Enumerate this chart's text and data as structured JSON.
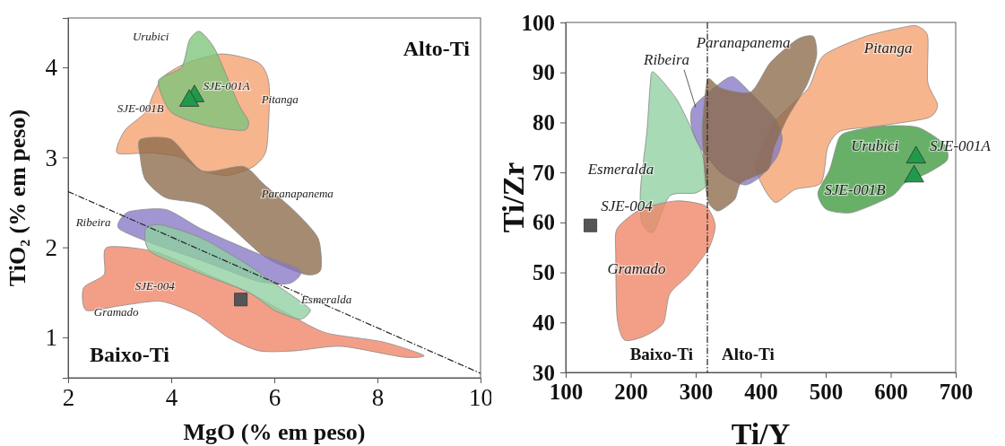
{
  "chart_data": [
    {
      "type": "scatter",
      "xlabel": "MgO (% em peso)",
      "ylabel": "TiO₂ (% em peso)",
      "xlim": [
        2,
        10
      ],
      "ylim": [
        0.55,
        4.55
      ],
      "xticks": [
        2,
        4,
        6,
        8,
        10
      ],
      "yticks": [
        1,
        2,
        3,
        4
      ],
      "grid": false,
      "series": [
        {
          "type": "area",
          "color": "#f5a06e",
          "x": [
            3.85,
            4.3,
            5,
            5.7,
            5.9,
            5.85,
            5.6,
            5.1,
            4.6,
            4.2,
            3.6,
            2.95,
            3.1,
            3.5,
            3.65
          ],
          "values": [
            3.9,
            4.05,
            4.15,
            4.05,
            3.8,
            3.1,
            2.9,
            2.8,
            2.85,
            3.0,
            3.05,
            3.05,
            3.3,
            3.5,
            3.7
          ]
        },
        {
          "type": "area",
          "color": "#7cc47a",
          "x": [
            4.2,
            4.35,
            4.55,
            4.85,
            5.3,
            5.5,
            5.4,
            4.7,
            4.0,
            3.75
          ],
          "values": [
            4.0,
            4.3,
            4.4,
            4.2,
            3.6,
            3.4,
            3.3,
            3.35,
            3.5,
            3.85
          ]
        },
        {
          "type": "area",
          "color": "#8c6a4a",
          "x": [
            3.4,
            4,
            4.6,
            5.4,
            5.8,
            6.4,
            6.85,
            6.9,
            6.6,
            5.8,
            4.7,
            3.9,
            3.5,
            3.4
          ],
          "values": [
            3.2,
            3.2,
            2.85,
            2.9,
            2.7,
            2.4,
            2.1,
            1.75,
            1.7,
            1.9,
            2.45,
            2.55,
            2.75,
            3.0
          ]
        },
        {
          "type": "area",
          "color": "#ef8466",
          "x": [
            2.75,
            3.7,
            4.7,
            5.5,
            6.3,
            7.0,
            8.1,
            8.9,
            8.5,
            7.3,
            6.4,
            5.7,
            5.1,
            4.5,
            3.8,
            3.0,
            2.35,
            2.3,
            2.7
          ],
          "values": [
            2.0,
            1.95,
            1.7,
            1.5,
            1.25,
            1.05,
            0.95,
            0.8,
            0.78,
            0.9,
            0.85,
            0.85,
            1.0,
            1.25,
            1.4,
            1.35,
            1.3,
            1.55,
            1.7
          ]
        },
        {
          "type": "area",
          "color": "#8679c4",
          "x": [
            3.0,
            3.2,
            3.9,
            4.6,
            5.6,
            6.5,
            6.3,
            5.7,
            4.6,
            3.6,
            3.0
          ],
          "values": [
            2.3,
            2.4,
            2.42,
            2.2,
            1.95,
            1.75,
            1.6,
            1.62,
            1.85,
            2.05,
            2.2
          ]
        },
        {
          "type": "area",
          "color": "#8ed0a0",
          "x": [
            3.5,
            3.8,
            4.6,
            5.5,
            6.0,
            6.5,
            6.7,
            6.5,
            6.0,
            5.5,
            4.6,
            3.6
          ],
          "values": [
            2.2,
            2.25,
            2.1,
            1.8,
            1.6,
            1.4,
            1.3,
            1.2,
            1.3,
            1.5,
            1.7,
            1.95
          ]
        },
        {
          "type": "line",
          "color": "#222222",
          "line_style": "dashed",
          "marker": "none",
          "x": [
            2,
            10
          ],
          "values": [
            2.62,
            0.6
          ]
        },
        {
          "color": "#1f9a4b",
          "marker": "triangle",
          "x": [
            4.45,
            4.35
          ],
          "values": [
            3.68,
            3.63
          ]
        },
        {
          "color": "#555555",
          "marker": "square",
          "x": [
            5.35
          ],
          "values": [
            1.42
          ]
        }
      ],
      "annotations": [
        "Alto-Ti",
        "Baixo-Ti",
        "Urubici",
        "SJE-001A",
        "Pitanga",
        "SJE-001B",
        "Paranapanema",
        "Ribeira",
        "SJE-004",
        "Esmeralda",
        "Gramado"
      ]
    },
    {
      "type": "scatter",
      "xlabel": "Ti/Y",
      "ylabel": "Ti/Zr",
      "xlim": [
        100,
        700
      ],
      "ylim": [
        30,
        100
      ],
      "xticks": [
        100,
        200,
        300,
        400,
        500,
        600,
        700
      ],
      "yticks": [
        30,
        40,
        50,
        60,
        70,
        80,
        90,
        100
      ],
      "grid": false,
      "ref_lines": [
        {
          "axis": "x",
          "value": 318,
          "color": "#222222",
          "line_style": "dashed"
        }
      ],
      "series": [
        {
          "type": "area",
          "color": "#8ed0a0",
          "x": [
            235,
            270,
            295,
            310,
            318,
            300,
            260,
            235,
            217,
            215,
            225,
            230
          ],
          "values": [
            90.1,
            84.8,
            78.3,
            73.7,
            67.9,
            65.9,
            65.3,
            58.1,
            60,
            66.6,
            78.3,
            87.5
          ]
        },
        {
          "type": "area",
          "color": "#ef8466",
          "x": [
            179,
            215,
            270,
            315,
            330,
            320,
            290,
            260,
            250,
            220,
            190,
            179,
            177
          ],
          "values": [
            58.7,
            62.6,
            64.3,
            63.3,
            59.4,
            54.8,
            49.6,
            45.7,
            39.8,
            37.2,
            36.5,
            41.1,
            53.5
          ]
        },
        {
          "type": "area",
          "color": "#f5a06e",
          "x": [
            496,
            561,
            626,
            642,
            657,
            657,
            672,
            657,
            576,
            523,
            503,
            493,
            453,
            423,
            403,
            393,
            423,
            473
          ],
          "values": [
            93.3,
            97.2,
            99.2,
            99.2,
            97.2,
            88.1,
            83.5,
            80.9,
            79.2,
            78.3,
            75,
            67.9,
            66.6,
            64,
            67.3,
            71.8,
            80.3,
            86.8
          ]
        },
        {
          "type": "area",
          "color": "#8679c4",
          "x": [
            295,
            340,
            358,
            380,
            421,
            433,
            425,
            400,
            375,
            340,
            310,
            295
          ],
          "values": [
            82.9,
            88.1,
            89.1,
            86.5,
            80.9,
            77,
            73.1,
            69.2,
            67.5,
            69.8,
            74.4,
            78.3
          ]
        },
        {
          "type": "area",
          "color": "#8c6a4a",
          "x": [
            320,
            340,
            385,
            415,
            456,
            481,
            486,
            471,
            441,
            421,
            411,
            370,
            360,
            335,
            320,
            315,
            310,
            315
          ],
          "values": [
            88.8,
            86.8,
            86.1,
            92,
            96.6,
            97.2,
            93.3,
            87.5,
            80.9,
            75,
            70.5,
            67.9,
            64.6,
            62.3,
            63.9,
            67.9,
            78.3,
            86.1
          ]
        },
        {
          "type": "area",
          "color": "#3e9a3e",
          "x": [
            521,
            541,
            591,
            642,
            682,
            687,
            657,
            622,
            602,
            541,
            501,
            488,
            506
          ],
          "values": [
            77,
            78.3,
            79.3,
            79,
            75.7,
            72.5,
            69.9,
            67.9,
            65.3,
            62,
            62.6,
            65.9,
            70.5
          ]
        },
        {
          "color": "#1f9a4b",
          "marker": "triangle",
          "x": [
            639,
            636
          ],
          "values": [
            73,
            69.2
          ]
        },
        {
          "color": "#555555",
          "marker": "square",
          "x": [
            138
          ],
          "values": [
            59.4
          ]
        }
      ],
      "annotations": [
        "Baixo-Ti",
        "Alto-Ti",
        "Paranapanema",
        {
          "text": "Ribeira",
          "x": 300,
          "y": 83
        },
        "Pitanga",
        "Urubici",
        "SJE-001A",
        "Esmeralda",
        "SJE-001B",
        "SJE-004",
        "Gramado"
      ]
    }
  ]
}
